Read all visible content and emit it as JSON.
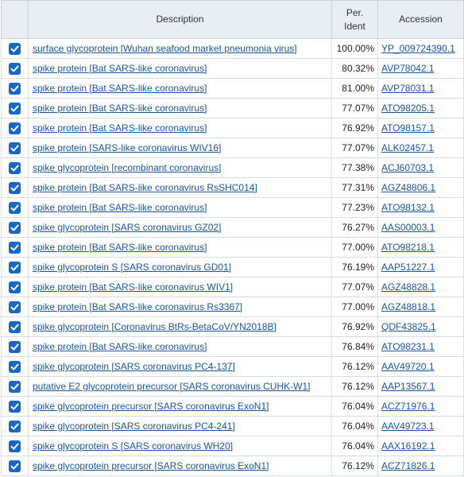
{
  "headers": {
    "description": "Description",
    "ident_line1": "Per.",
    "ident_line2": "Ident",
    "accession": "Accession"
  },
  "colors": {
    "checkbox": "#1468c7",
    "link": "#1b56a0",
    "header_bg": "#e9eef4"
  },
  "icons": {
    "checkbox": "checkbox-checked-icon"
  },
  "rows": [
    {
      "checked": true,
      "desc": "surface glycoprotein [Wuhan seafood market pneumonia virus]",
      "ident": "100.00%",
      "acc": "YP_009724390.1"
    },
    {
      "checked": true,
      "desc": "spike protein [Bat SARS-like coronavirus]",
      "ident": "80.32%",
      "acc": "AVP78042.1"
    },
    {
      "checked": true,
      "desc": "spike protein [Bat SARS-like coronavirus]",
      "ident": "81.00%",
      "acc": "AVP78031.1"
    },
    {
      "checked": true,
      "desc": "spike protein [Bat SARS-like coronavirus]",
      "ident": "77.07%",
      "acc": "ATO98205.1"
    },
    {
      "checked": true,
      "desc": "spike protein [Bat SARS-like coronavirus]",
      "ident": "76.92%",
      "acc": "ATO98157.1"
    },
    {
      "checked": true,
      "desc": "spike protein [SARS-like coronavirus WIV16]",
      "ident": "77.07%",
      "acc": "ALK02457.1"
    },
    {
      "checked": true,
      "desc": "spike glycoprotein [recombinant coronavirus]",
      "ident": "77.38%",
      "acc": "ACJ60703.1"
    },
    {
      "checked": true,
      "desc": "spike protein [Bat SARS-like coronavirus RsSHC014]",
      "ident": "77.31%",
      "acc": "AGZ48806.1"
    },
    {
      "checked": true,
      "desc": "spike protein [Bat SARS-like coronavirus]",
      "ident": "77.23%",
      "acc": "ATO98132.1"
    },
    {
      "checked": true,
      "desc": "spike glycoprotein [SARS coronavirus GZ02]",
      "ident": "76.27%",
      "acc": "AAS00003.1"
    },
    {
      "checked": true,
      "desc": "spike protein [Bat SARS-like coronavirus]",
      "ident": "77.00%",
      "acc": "ATO98218.1"
    },
    {
      "checked": true,
      "desc": "spike glycoprotein S [SARS coronavirus GD01]",
      "ident": "76.19%",
      "acc": "AAP51227.1"
    },
    {
      "checked": true,
      "desc": "spike protein [Bat SARS-like coronavirus WIV1]",
      "ident": "77.07%",
      "acc": "AGZ48828.1"
    },
    {
      "checked": true,
      "desc": "spike protein [Bat SARS-like coronavirus Rs3367]",
      "ident": "77.00%",
      "acc": "AGZ48818.1"
    },
    {
      "checked": true,
      "desc": "spike glycoprotein [Coronavirus BtRs-BetaCoV/YN2018B]",
      "ident": "76.92%",
      "acc": "QDF43825.1"
    },
    {
      "checked": true,
      "desc": "spike protein [Bat SARS-like coronavirus]",
      "ident": "76.84%",
      "acc": "ATO98231.1"
    },
    {
      "checked": true,
      "desc": "spike glycoprotein [SARS coronavirus PC4-137]",
      "ident": "76.12%",
      "acc": "AAV49720.1"
    },
    {
      "checked": true,
      "desc": "putative E2 glycoprotein precursor [SARS coronavirus CUHK-W1]",
      "ident": "76.12%",
      "acc": "AAP13567.1"
    },
    {
      "checked": true,
      "desc": "spike glycoprotein precursor [SARS coronavirus ExoN1]",
      "ident": "76.04%",
      "acc": "ACZ71976.1"
    },
    {
      "checked": true,
      "desc": "spike glycoprotein [SARS coronavirus PC4-241]",
      "ident": "76.04%",
      "acc": "AAV49723.1"
    },
    {
      "checked": true,
      "desc": "spike glycoprotein S [SARS coronavirus WH20]",
      "ident": "76.04%",
      "acc": "AAX16192.1"
    },
    {
      "checked": true,
      "desc": "spike glycoprotein precursor [SARS coronavirus ExoN1]",
      "ident": "76.12%",
      "acc": "ACZ71826.1"
    }
  ]
}
